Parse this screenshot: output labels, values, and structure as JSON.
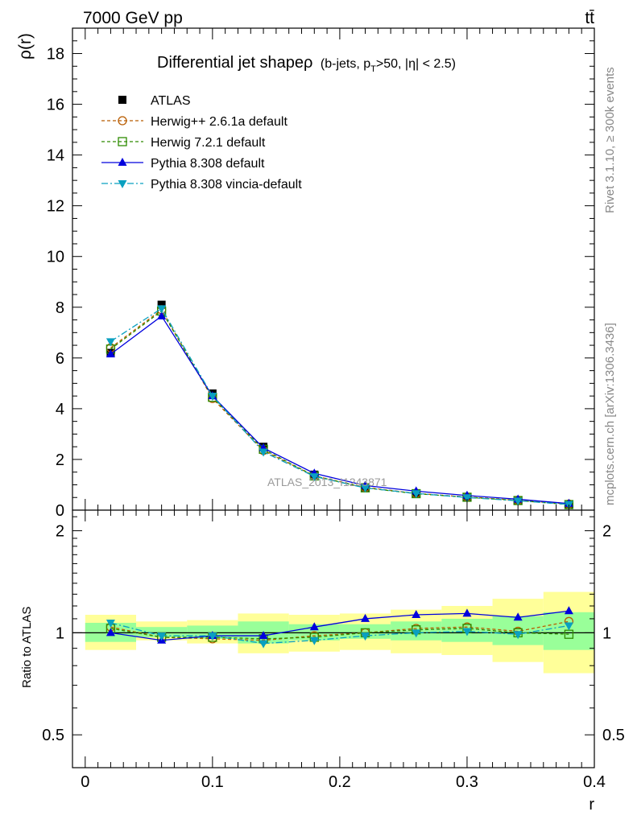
{
  "header": {
    "energy_label": "7000 GeV pp",
    "process_label": "tt̄"
  },
  "side_labels": {
    "rivet": "Rivet 3.1.10, ≥ 300k events",
    "mcplots": "mcplots.cern.ch [arXiv:1306.3436]"
  },
  "watermark": "ATLAS_2013_I1243871",
  "chart_data": [
    {
      "type": "line",
      "panel": "main",
      "title": {
        "main": "Differential jet shapeρ",
        "sub_prefix": "(b-jets, p",
        "sub_sub": "T",
        "sub_suffix": ">50, |η| < 2.5)"
      },
      "ylabel": "ρ(r)",
      "xlabel": "r",
      "xlim": [
        -0.01,
        0.4
      ],
      "ylim": [
        0,
        19
      ],
      "yticks": [
        0,
        2,
        4,
        6,
        8,
        10,
        12,
        14,
        16,
        18
      ],
      "yticklabels": [
        "0",
        "2",
        "4",
        "6",
        "8",
        "10",
        "12",
        "14",
        "16",
        "18"
      ],
      "legend_position": "top-left",
      "x": [
        0.02,
        0.06,
        0.1,
        0.14,
        0.18,
        0.22,
        0.26,
        0.3,
        0.34,
        0.38
      ],
      "series": [
        {
          "name": "ATLAS",
          "color": "#000000",
          "marker": "square",
          "dash": "",
          "values": [
            6.2,
            8.1,
            4.6,
            2.5,
            1.4,
            0.9,
            0.65,
            0.5,
            0.38,
            0.22
          ]
        },
        {
          "name": "Herwig++ 2.6.1a default",
          "color": "#b85c00",
          "marker": "circle-open",
          "dash": "4,3",
          "values": [
            6.4,
            7.9,
            4.4,
            2.35,
            1.35,
            0.9,
            0.66,
            0.52,
            0.39,
            0.24
          ]
        },
        {
          "name": "Herwig 7.2.1 default",
          "color": "#2e8b00",
          "marker": "square-open",
          "dash": "4,3",
          "values": [
            6.35,
            7.85,
            4.45,
            2.4,
            1.35,
            0.88,
            0.65,
            0.51,
            0.38,
            0.22
          ]
        },
        {
          "name": "Pythia 8.308 default",
          "color": "#0000dd",
          "marker": "triangle-up",
          "dash": "",
          "values": [
            6.15,
            7.65,
            4.5,
            2.45,
            1.45,
            0.97,
            0.75,
            0.58,
            0.43,
            0.26
          ]
        },
        {
          "name": "Pythia 8.308 vincia-default",
          "color": "#0aa0c0",
          "marker": "triangle-down",
          "dash": "8,3,2,3",
          "values": [
            6.65,
            7.95,
            4.5,
            2.3,
            1.33,
            0.88,
            0.66,
            0.5,
            0.37,
            0.23
          ]
        }
      ]
    },
    {
      "type": "line",
      "panel": "ratio",
      "ylabel": "Ratio to ATLAS",
      "xlabel": "r",
      "xlim": [
        -0.01,
        0.4
      ],
      "ylim": [
        0.4,
        2.3
      ],
      "log_y": true,
      "yticks": [
        0.5,
        1,
        2
      ],
      "yticklabels": [
        "0.5",
        "1",
        "2"
      ],
      "xticks": [
        0,
        0.1,
        0.2,
        0.3,
        0.4
      ],
      "xticklabels": [
        "0",
        "0.1",
        "0.2",
        "0.3",
        "0.4"
      ],
      "x": [
        0.02,
        0.06,
        0.1,
        0.14,
        0.18,
        0.22,
        0.26,
        0.3,
        0.34,
        0.38
      ],
      "bin_edges": [
        0,
        0.04,
        0.08,
        0.12,
        0.16,
        0.2,
        0.24,
        0.28,
        0.32,
        0.36,
        0.4
      ],
      "stat_band": {
        "color": "#99ff99",
        "lo": [
          0.94,
          0.97,
          0.96,
          0.93,
          0.95,
          0.96,
          0.95,
          0.94,
          0.92,
          0.89
        ],
        "hi": [
          1.07,
          1.04,
          1.05,
          1.08,
          1.06,
          1.06,
          1.08,
          1.1,
          1.12,
          1.15
        ]
      },
      "syst_band": {
        "color": "#ffff99",
        "lo": [
          0.89,
          0.95,
          0.93,
          0.87,
          0.88,
          0.89,
          0.87,
          0.86,
          0.82,
          0.76
        ],
        "hi": [
          1.13,
          1.08,
          1.09,
          1.14,
          1.13,
          1.14,
          1.17,
          1.2,
          1.26,
          1.32
        ]
      },
      "series": [
        {
          "name": "Herwig++ 2.6.1a default",
          "values": [
            1.04,
            0.97,
            0.96,
            0.95,
            0.98,
            1.0,
            1.03,
            1.04,
            1.01,
            1.08
          ]
        },
        {
          "name": "Herwig 7.2.1 default",
          "values": [
            1.03,
            0.97,
            0.97,
            0.96,
            0.97,
            1.0,
            1.02,
            1.03,
            1.0,
            0.99
          ]
        },
        {
          "name": "Pythia 8.308 default",
          "values": [
            1.0,
            0.95,
            0.98,
            0.98,
            1.04,
            1.1,
            1.13,
            1.14,
            1.11,
            1.16
          ]
        },
        {
          "name": "Pythia 8.308 vincia-default",
          "values": [
            1.07,
            0.98,
            0.98,
            0.93,
            0.95,
            0.98,
            1.0,
            1.01,
            0.99,
            1.05
          ]
        }
      ]
    }
  ]
}
